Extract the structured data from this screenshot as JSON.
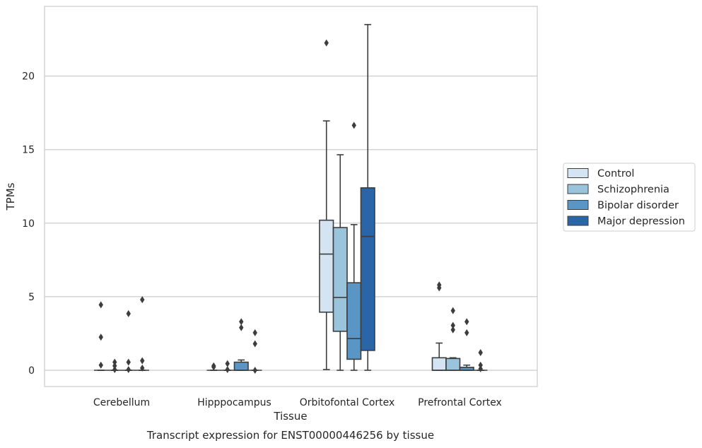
{
  "chart_data": {
    "type": "box",
    "title": "Transcript expression for ENST00000446256 by tissue",
    "xlabel": "Tissue",
    "ylabel": "TPMs",
    "ylim": [
      -1.1,
      24.5
    ],
    "yticks": [
      0,
      5,
      10,
      15,
      20
    ],
    "grid": "horizontal",
    "legend_position": "right",
    "categories": [
      "Cerebellum",
      "Hipppocampus",
      "Orbitofontal Cortex",
      "Prefrontal Cortex"
    ],
    "series": [
      {
        "name": "Control",
        "color": "#d4e4f2",
        "boxes": [
          {
            "whislo": 0,
            "q1": 0,
            "med": 0,
            "q3": 0,
            "whishi": 0,
            "fliers": [
              4.45,
              2.25,
              0.35
            ]
          },
          {
            "whislo": 0,
            "q1": 0,
            "med": 0,
            "q3": 0,
            "whishi": 0,
            "fliers": [
              0.3,
              0.22
            ]
          },
          {
            "whislo": 0.05,
            "q1": 3.95,
            "med": 7.9,
            "q3": 10.2,
            "whishi": 16.95,
            "fliers": [
              22.25
            ]
          },
          {
            "whislo": 0,
            "q1": 0,
            "med": 0,
            "q3": 0.85,
            "whishi": 1.85,
            "fliers": [
              5.8,
              5.6
            ]
          }
        ]
      },
      {
        "name": "Schizophrenia",
        "color": "#9ac3dc",
        "boxes": [
          {
            "whislo": 0,
            "q1": 0,
            "med": 0,
            "q3": 0,
            "whishi": 0,
            "fliers": [
              0.55,
              0.3,
              0.05
            ]
          },
          {
            "whislo": 0,
            "q1": 0,
            "med": 0,
            "q3": 0,
            "whishi": 0,
            "fliers": [
              0.45,
              0.05
            ]
          },
          {
            "whislo": 0,
            "q1": 2.65,
            "med": 4.95,
            "q3": 9.7,
            "whishi": 14.65,
            "fliers": []
          },
          {
            "whislo": 0,
            "q1": 0,
            "med": 0,
            "q3": 0.8,
            "whishi": 0.85,
            "fliers": [
              4.05,
              3.05,
              2.75
            ]
          }
        ]
      },
      {
        "name": "Bipolar disorder",
        "color": "#5996c5",
        "boxes": [
          {
            "whislo": 0,
            "q1": 0,
            "med": 0,
            "q3": 0,
            "whishi": 0,
            "fliers": [
              3.85,
              0.55,
              0.05
            ]
          },
          {
            "whislo": 0,
            "q1": 0,
            "med": 0,
            "q3": 0.55,
            "whishi": 0.7,
            "fliers": [
              3.3,
              2.9
            ]
          },
          {
            "whislo": 0,
            "q1": 0.75,
            "med": 2.15,
            "q3": 5.95,
            "whishi": 9.9,
            "fliers": [
              16.65
            ]
          },
          {
            "whislo": 0,
            "q1": 0,
            "med": 0,
            "q3": 0.2,
            "whishi": 0.35,
            "fliers": [
              3.3,
              2.55
            ]
          }
        ]
      },
      {
        "name": "Major depression",
        "color": "#2a66a7",
        "boxes": [
          {
            "whislo": 0,
            "q1": 0,
            "med": 0,
            "q3": 0,
            "whishi": 0,
            "fliers": [
              4.8,
              0.65,
              0.15
            ]
          },
          {
            "whislo": 0,
            "q1": 0,
            "med": 0,
            "q3": 0,
            "whishi": 0,
            "fliers": [
              2.55,
              1.8,
              0.0
            ]
          },
          {
            "whislo": 0,
            "q1": 1.35,
            "med": 9.1,
            "q3": 12.4,
            "whishi": 23.5,
            "fliers": []
          },
          {
            "whislo": 0,
            "q1": 0,
            "med": 0,
            "q3": 0,
            "whishi": 0,
            "fliers": [
              1.2,
              0.35,
              0.1
            ]
          }
        ]
      }
    ]
  }
}
